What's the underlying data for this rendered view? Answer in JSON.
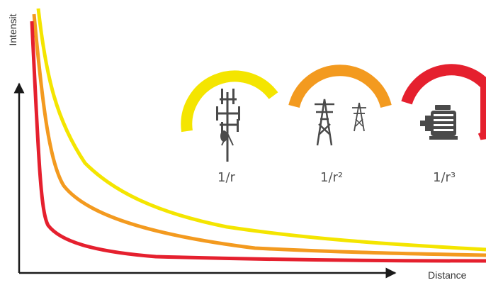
{
  "axes": {
    "y_label": "Intensit",
    "x_label": "Distance"
  },
  "laws": [
    {
      "label": "1/r",
      "icon": "cell-tower-icon",
      "color": "#f4e500"
    },
    {
      "label": "1/r²",
      "icon": "power-line-tower-icon",
      "color": "#f39a1f"
    },
    {
      "label": "1/r³",
      "icon": "electric-motor-icon",
      "color": "#e5202e"
    }
  ],
  "colors": {
    "yellow": "#f4e500",
    "orange": "#f39a1f",
    "red": "#e5202e",
    "axis": "#1a1a1a",
    "icon": "#4a4a4a"
  }
}
